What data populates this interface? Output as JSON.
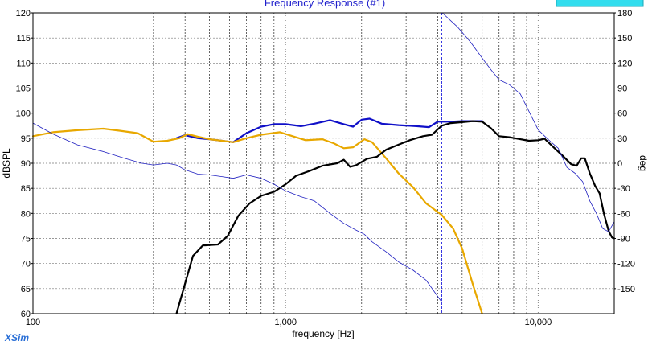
{
  "chart_data": {
    "type": "line",
    "title": "Frequency Response (#1)",
    "xlabel": "frequency [Hz]",
    "ylabel": "dBSPL",
    "y2label": "deg",
    "xscale": "log",
    "xlim": [
      100,
      20000
    ],
    "ylim": [
      60,
      120
    ],
    "y2lim": [
      -180,
      180
    ],
    "x_tick_labels": [
      {
        "value": 100,
        "label": "100"
      },
      {
        "value": 1000,
        "label": "1,000"
      },
      {
        "value": 10000,
        "label": "10,000"
      }
    ],
    "y_ticks": [
      60,
      65,
      70,
      75,
      80,
      85,
      90,
      95,
      100,
      105,
      110,
      115,
      120
    ],
    "y2_ticks": [
      -150,
      -120,
      -90,
      -60,
      -30,
      0,
      30,
      60,
      90,
      120,
      150,
      180
    ],
    "grid": true,
    "brand": "XSim",
    "marker_x": 4150,
    "colors": {
      "blue": "#1010c8",
      "orange": "#e8a800",
      "black": "#000000",
      "thin_blue": "#2020c0"
    },
    "series": [
      {
        "key": "blue",
        "axis": "left",
        "points": [
          [
            370,
            95.0
          ],
          [
            400,
            95.6
          ],
          [
            450,
            95.0
          ],
          [
            500,
            94.8
          ],
          [
            560,
            94.5
          ],
          [
            620,
            94.2
          ],
          [
            700,
            96.0
          ],
          [
            800,
            97.3
          ],
          [
            900,
            97.8
          ],
          [
            1000,
            97.8
          ],
          [
            1150,
            97.4
          ],
          [
            1300,
            97.9
          ],
          [
            1500,
            98.6
          ],
          [
            1700,
            97.8
          ],
          [
            1850,
            97.3
          ],
          [
            2000,
            98.7
          ],
          [
            2150,
            98.9
          ],
          [
            2400,
            97.9
          ],
          [
            2800,
            97.6
          ],
          [
            3300,
            97.4
          ],
          [
            3700,
            97.2
          ],
          [
            4000,
            98.3
          ],
          [
            4500,
            98.3
          ],
          [
            5000,
            98.4
          ],
          [
            5500,
            98.4
          ],
          [
            6000,
            98.4
          ]
        ]
      },
      {
        "key": "orange",
        "axis": "left",
        "points": [
          [
            100,
            95.4
          ],
          [
            120,
            96.2
          ],
          [
            150,
            96.6
          ],
          [
            190,
            96.9
          ],
          [
            220,
            96.5
          ],
          [
            260,
            96.0
          ],
          [
            300,
            94.3
          ],
          [
            340,
            94.5
          ],
          [
            380,
            95.0
          ],
          [
            410,
            95.8
          ],
          [
            450,
            95.3
          ],
          [
            500,
            94.8
          ],
          [
            560,
            94.5
          ],
          [
            620,
            94.2
          ],
          [
            700,
            95.0
          ],
          [
            800,
            95.7
          ],
          [
            950,
            96.2
          ],
          [
            1050,
            95.5
          ],
          [
            1200,
            94.6
          ],
          [
            1400,
            94.8
          ],
          [
            1550,
            94.0
          ],
          [
            1700,
            93.0
          ],
          [
            1850,
            93.2
          ],
          [
            2050,
            94.8
          ],
          [
            2200,
            94.2
          ],
          [
            2500,
            91.0
          ],
          [
            2800,
            88.0
          ],
          [
            3200,
            85.2
          ],
          [
            3600,
            82.0
          ],
          [
            4150,
            79.7
          ],
          [
            4600,
            77.0
          ],
          [
            5000,
            73.0
          ],
          [
            5500,
            66.0
          ],
          [
            6000,
            60.0
          ]
        ]
      },
      {
        "key": "black",
        "axis": "left",
        "points": [
          [
            370,
            60.0
          ],
          [
            400,
            66.0
          ],
          [
            430,
            71.5
          ],
          [
            470,
            73.6
          ],
          [
            540,
            73.8
          ],
          [
            590,
            75.5
          ],
          [
            650,
            79.5
          ],
          [
            720,
            82.0
          ],
          [
            800,
            83.5
          ],
          [
            900,
            84.3
          ],
          [
            1000,
            85.8
          ],
          [
            1100,
            87.5
          ],
          [
            1250,
            88.5
          ],
          [
            1400,
            89.5
          ],
          [
            1600,
            90.0
          ],
          [
            1700,
            90.7
          ],
          [
            1800,
            89.3
          ],
          [
            1900,
            89.6
          ],
          [
            2100,
            90.9
          ],
          [
            2300,
            91.3
          ],
          [
            2500,
            92.7
          ],
          [
            2800,
            93.7
          ],
          [
            3100,
            94.6
          ],
          [
            3500,
            95.4
          ],
          [
            3800,
            95.7
          ],
          [
            4150,
            97.5
          ],
          [
            4500,
            98.0
          ],
          [
            5000,
            98.2
          ],
          [
            5500,
            98.4
          ],
          [
            6000,
            98.3
          ],
          [
            6500,
            97.0
          ],
          [
            7000,
            95.4
          ],
          [
            7700,
            95.2
          ],
          [
            8500,
            94.8
          ],
          [
            9200,
            94.5
          ],
          [
            10000,
            94.6
          ],
          [
            10600,
            94.9
          ],
          [
            11500,
            93.2
          ],
          [
            12500,
            91.5
          ],
          [
            13500,
            89.8
          ],
          [
            14200,
            89.5
          ],
          [
            14800,
            91.0
          ],
          [
            15300,
            91.0
          ],
          [
            16000,
            88.0
          ],
          [
            16800,
            85.5
          ],
          [
            17500,
            84.0
          ],
          [
            18200,
            80.0
          ],
          [
            19000,
            76.5
          ],
          [
            19600,
            75.2
          ],
          [
            20000,
            75.0
          ]
        ]
      },
      {
        "key": "thin_blue",
        "axis": "right",
        "points": [
          [
            100,
            48
          ],
          [
            120,
            35
          ],
          [
            150,
            22
          ],
          [
            190,
            14
          ],
          [
            230,
            6
          ],
          [
            270,
            0
          ],
          [
            300,
            -2
          ],
          [
            340,
            0
          ],
          [
            370,
            -2
          ],
          [
            400,
            -8
          ],
          [
            450,
            -13
          ],
          [
            500,
            -14
          ],
          [
            560,
            -16
          ],
          [
            620,
            -18
          ],
          [
            700,
            -14
          ],
          [
            800,
            -18
          ],
          [
            900,
            -25
          ],
          [
            1000,
            -33
          ],
          [
            1150,
            -40
          ],
          [
            1300,
            -45
          ],
          [
            1500,
            -60
          ],
          [
            1700,
            -72
          ],
          [
            1900,
            -80
          ],
          [
            2050,
            -85
          ],
          [
            2200,
            -94
          ],
          [
            2500,
            -106
          ],
          [
            2800,
            -118
          ],
          [
            3200,
            -128
          ],
          [
            3600,
            -140
          ],
          [
            4150,
            -166
          ],
          [
            4170,
            180
          ],
          [
            4800,
            163
          ],
          [
            5400,
            145
          ],
          [
            6000,
            126
          ],
          [
            6500,
            112
          ],
          [
            7000,
            100
          ],
          [
            7700,
            94
          ],
          [
            8500,
            83
          ],
          [
            9200,
            62
          ],
          [
            10000,
            40
          ],
          [
            11000,
            28
          ],
          [
            12000,
            18
          ],
          [
            13000,
            -5
          ],
          [
            14000,
            -12
          ],
          [
            15000,
            -22
          ],
          [
            16000,
            -45
          ],
          [
            17000,
            -60
          ],
          [
            18000,
            -78
          ],
          [
            19000,
            -82
          ],
          [
            20000,
            -70
          ]
        ]
      }
    ]
  }
}
